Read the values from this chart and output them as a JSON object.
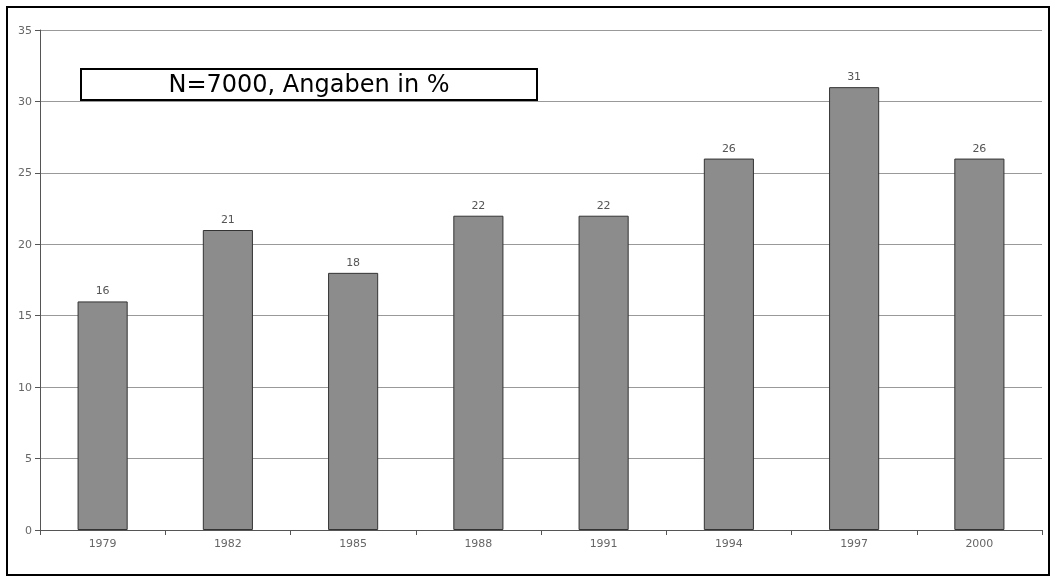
{
  "chart_data": {
    "type": "bar",
    "categories": [
      "1979",
      "1982",
      "1985",
      "1988",
      "1991",
      "1994",
      "1997",
      "2000"
    ],
    "values": [
      16,
      21,
      18,
      22,
      22,
      26,
      31,
      26
    ],
    "color": "#8c8c8c",
    "ylim": [
      0,
      35
    ],
    "yticks": [
      0,
      5,
      10,
      15,
      20,
      25,
      30,
      35
    ],
    "grid": "y",
    "data_labels": true,
    "annotations": [
      "N=7000, Angaben in %"
    ]
  }
}
